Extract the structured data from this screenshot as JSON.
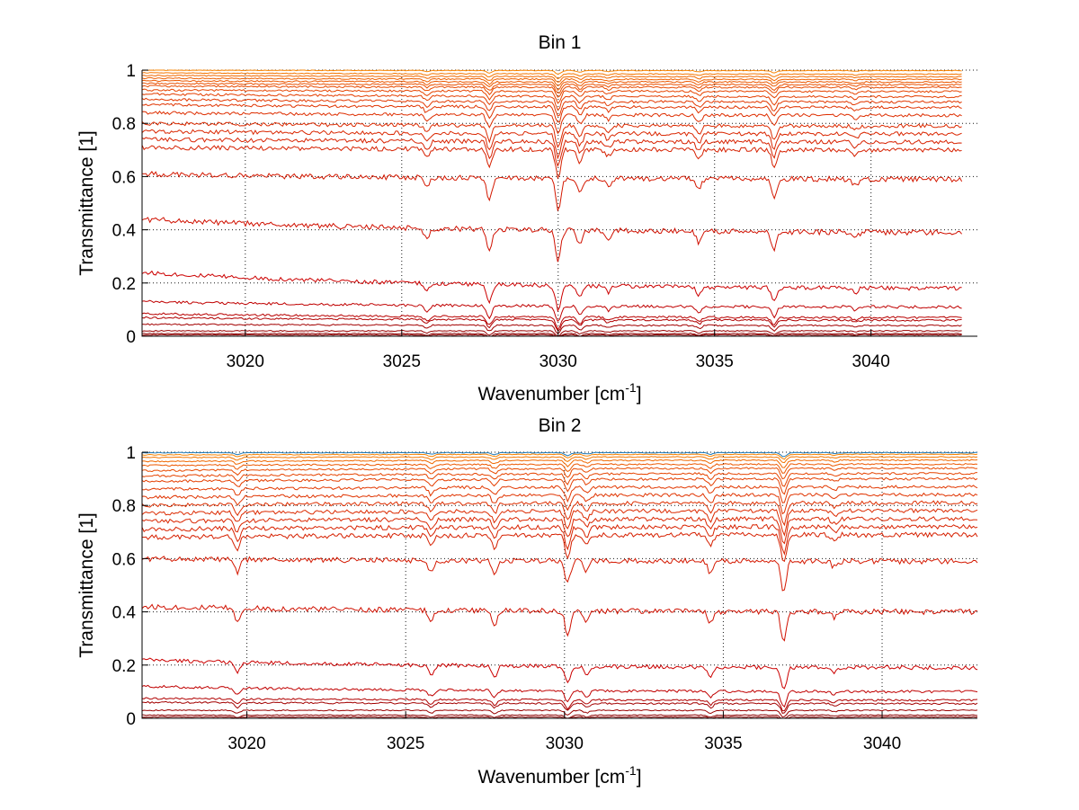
{
  "chart_data": [
    {
      "type": "line",
      "title": "Bin 1",
      "xlabel": "Wavenumber [cm",
      "xlabel_sup": "-1",
      "xlabel_end": "]",
      "ylabel": "Transmittance [1]",
      "xlim": [
        3016.7,
        3043.4
      ],
      "ylim": [
        0,
        1
      ],
      "x_end": 3042.9,
      "xticks": [
        3020,
        3025,
        3030,
        3035,
        3040
      ],
      "yticks": [
        0,
        0.2,
        0.4,
        0.6,
        0.8,
        1
      ],
      "ytick_labels": [
        "0",
        "0.2",
        "0.4",
        "0.6",
        "0.8",
        "1"
      ],
      "grid": true,
      "dips": [
        {
          "x": 3025.8,
          "depth": 0.35
        },
        {
          "x": 3027.8,
          "depth": 0.7
        },
        {
          "x": 3030.0,
          "depth": 1.0
        },
        {
          "x": 3030.7,
          "depth": 0.5
        },
        {
          "x": 3031.6,
          "depth": 0.25
        },
        {
          "x": 3034.5,
          "depth": 0.35
        },
        {
          "x": 3036.9,
          "depth": 0.6
        },
        {
          "x": 3039.5,
          "depth": 0.2
        }
      ],
      "series": [
        {
          "start": 0.005,
          "end": 0.005,
          "color": "#8b0000"
        },
        {
          "start": 0.01,
          "end": 0.01,
          "color": "#8b0000"
        },
        {
          "start": 0.02,
          "end": 0.02,
          "color": "#990000"
        },
        {
          "start": 0.045,
          "end": 0.04,
          "color": "#a30000"
        },
        {
          "start": 0.07,
          "end": 0.06,
          "color": "#b00000"
        },
        {
          "start": 0.085,
          "end": 0.07,
          "color": "#b80000"
        },
        {
          "start": 0.13,
          "end": 0.11,
          "color": "#c00000"
        },
        {
          "start": 0.24,
          "end": 0.18,
          "color": "#cc0000"
        },
        {
          "start": 0.44,
          "end": 0.39,
          "color": "#d01000"
        },
        {
          "start": 0.61,
          "end": 0.59,
          "color": "#d41800"
        },
        {
          "start": 0.71,
          "end": 0.7,
          "color": "#d62000"
        },
        {
          "start": 0.74,
          "end": 0.73,
          "color": "#d82200"
        },
        {
          "start": 0.77,
          "end": 0.76,
          "color": "#da2600"
        },
        {
          "start": 0.8,
          "end": 0.79,
          "color": "#dc2a00"
        },
        {
          "start": 0.84,
          "end": 0.83,
          "color": "#de2e00"
        },
        {
          "start": 0.87,
          "end": 0.86,
          "color": "#e03400"
        },
        {
          "start": 0.89,
          "end": 0.88,
          "color": "#e23800"
        },
        {
          "start": 0.91,
          "end": 0.9,
          "color": "#e43e00"
        },
        {
          "start": 0.925,
          "end": 0.92,
          "color": "#e64400"
        },
        {
          "start": 0.94,
          "end": 0.935,
          "color": "#e84a00"
        },
        {
          "start": 0.95,
          "end": 0.945,
          "color": "#ea5000"
        },
        {
          "start": 0.96,
          "end": 0.955,
          "color": "#ec5800"
        },
        {
          "start": 0.97,
          "end": 0.965,
          "color": "#ee6000"
        },
        {
          "start": 0.98,
          "end": 0.975,
          "color": "#f06800"
        },
        {
          "start": 0.99,
          "end": 0.985,
          "color": "#f47600"
        },
        {
          "start": 1.0,
          "end": 0.998,
          "color": "#f88400"
        }
      ]
    },
    {
      "type": "line",
      "title": "Bin 2",
      "xlabel": "Wavenumber [cm",
      "xlabel_sup": "-1",
      "xlabel_end": "]",
      "ylabel": "Transmittance [1]",
      "xlim": [
        3016.7,
        3043.0
      ],
      "ylim": [
        0,
        1
      ],
      "x_end": 3043.0,
      "xticks": [
        3020,
        3025,
        3030,
        3035,
        3040
      ],
      "yticks": [
        0,
        0.2,
        0.4,
        0.6,
        0.8,
        1
      ],
      "ytick_labels": [
        "0",
        "0.2",
        "0.4",
        "0.6",
        "0.8",
        "1"
      ],
      "grid": true,
      "dips": [
        {
          "x": 3019.7,
          "depth": 0.45
        },
        {
          "x": 3025.8,
          "depth": 0.4
        },
        {
          "x": 3027.8,
          "depth": 0.45
        },
        {
          "x": 3030.1,
          "depth": 0.75
        },
        {
          "x": 3030.7,
          "depth": 0.35
        },
        {
          "x": 3034.6,
          "depth": 0.4
        },
        {
          "x": 3036.9,
          "depth": 1.0
        },
        {
          "x": 3038.5,
          "depth": 0.2
        }
      ],
      "series": [
        {
          "start": 0.005,
          "end": 0.005,
          "color": "#8b0000"
        },
        {
          "start": 0.012,
          "end": 0.012,
          "color": "#8b0000"
        },
        {
          "start": 0.03,
          "end": 0.03,
          "color": "#990000"
        },
        {
          "start": 0.06,
          "end": 0.055,
          "color": "#a30000"
        },
        {
          "start": 0.075,
          "end": 0.068,
          "color": "#b00000"
        },
        {
          "start": 0.12,
          "end": 0.1,
          "color": "#c00000"
        },
        {
          "start": 0.22,
          "end": 0.19,
          "color": "#cc0000"
        },
        {
          "start": 0.42,
          "end": 0.4,
          "color": "#d01000"
        },
        {
          "start": 0.6,
          "end": 0.59,
          "color": "#d41800"
        },
        {
          "start": 0.68,
          "end": 0.69,
          "color": "#d62000"
        },
        {
          "start": 0.71,
          "end": 0.72,
          "color": "#d82200"
        },
        {
          "start": 0.74,
          "end": 0.75,
          "color": "#da2600"
        },
        {
          "start": 0.77,
          "end": 0.78,
          "color": "#dc2a00"
        },
        {
          "start": 0.8,
          "end": 0.81,
          "color": "#de2e00"
        },
        {
          "start": 0.83,
          "end": 0.84,
          "color": "#e03400"
        },
        {
          "start": 0.86,
          "end": 0.87,
          "color": "#e23800"
        },
        {
          "start": 0.89,
          "end": 0.9,
          "color": "#e43e00"
        },
        {
          "start": 0.91,
          "end": 0.92,
          "color": "#e64400"
        },
        {
          "start": 0.93,
          "end": 0.94,
          "color": "#e84a00"
        },
        {
          "start": 0.95,
          "end": 0.955,
          "color": "#ec5800"
        },
        {
          "start": 0.965,
          "end": 0.97,
          "color": "#f06800"
        },
        {
          "start": 0.98,
          "end": 0.982,
          "color": "#f47600"
        },
        {
          "start": 0.99,
          "end": 0.992,
          "color": "#f88400"
        },
        {
          "start": 0.998,
          "end": 0.998,
          "color": "#1f7ab8"
        }
      ]
    }
  ]
}
